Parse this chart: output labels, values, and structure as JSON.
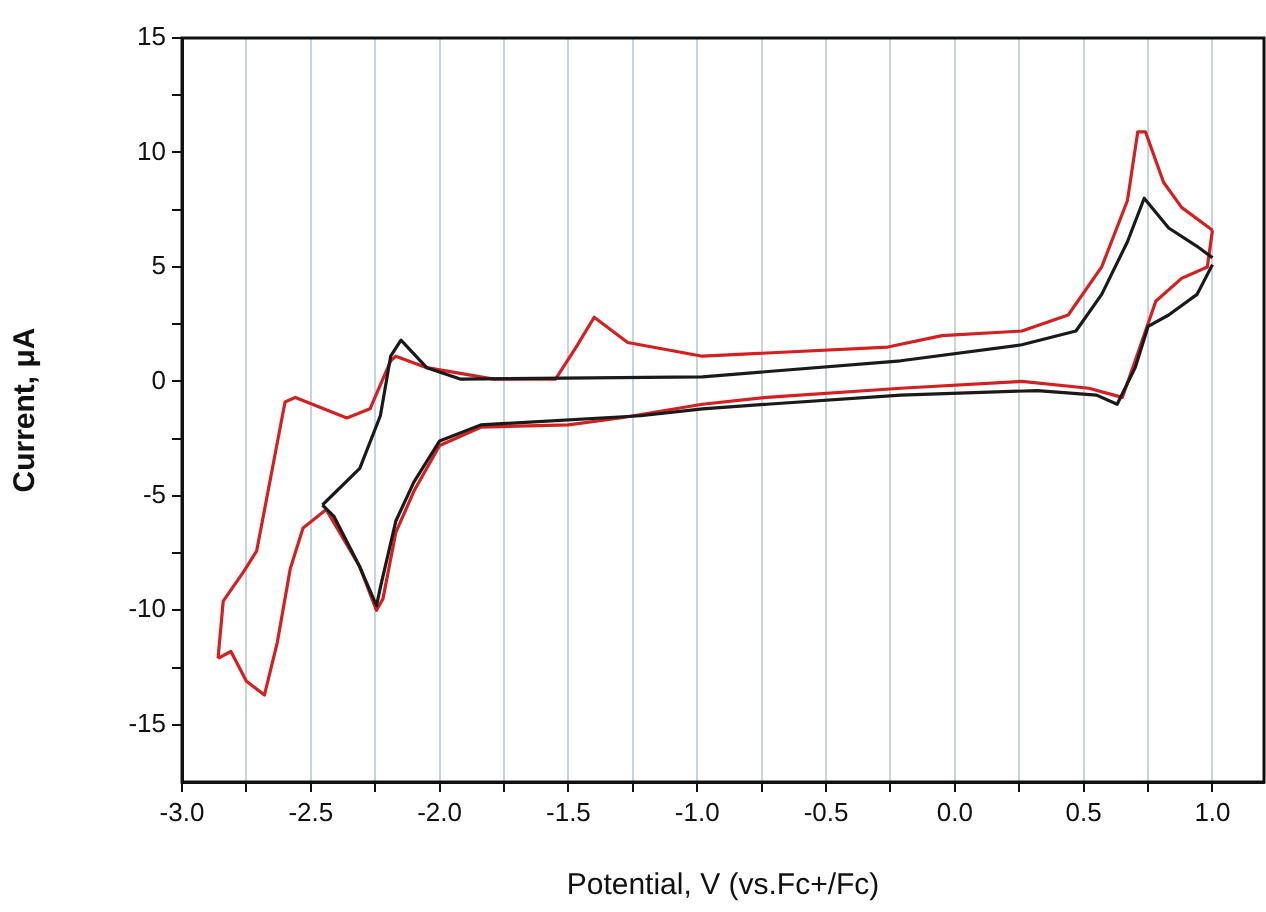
{
  "chart_data": {
    "type": "line",
    "xlabel": "Potential, V (vs.Fc+/Fc)",
    "ylabel": "Current, μA",
    "xlim": [
      -3.0,
      1.2
    ],
    "ylim": [
      -17.5,
      15
    ],
    "xticks": [
      {
        "value": -3,
        "label": "-3.0"
      },
      {
        "value": -2.75,
        "label": null
      },
      -2.5,
      {
        "value": -2.25,
        "label": null
      },
      {
        "value": -2,
        "label": "-2.0"
      },
      {
        "value": -1.75,
        "label": null
      },
      -1.5,
      {
        "value": -1.25,
        "label": null
      },
      {
        "value": -1,
        "label": "-1.0"
      },
      {
        "value": -0.75,
        "label": null
      },
      -0.5,
      {
        "value": -0.25,
        "label": null
      },
      {
        "value": 0,
        "label": "0.0"
      },
      {
        "value": 0.25,
        "label": null
      },
      0.5,
      {
        "value": 0.75,
        "label": null
      },
      {
        "value": 1,
        "label": "1.0"
      }
    ],
    "yticks": [
      15,
      {
        "value": 12.5,
        "label": null
      },
      10,
      {
        "value": 7.5,
        "label": null
      },
      5,
      {
        "value": 2.5,
        "label": null
      },
      0,
      {
        "value": -2.5,
        "label": null
      },
      -5,
      {
        "value": -7.5,
        "label": null
      },
      -10,
      {
        "value": -12.5,
        "label": null
      },
      -15
    ],
    "grid": "x",
    "legend": false,
    "marker": "none",
    "line_style": "solid",
    "series": [
      {
        "color": "#1a1a1a",
        "x": [
          -2.455,
          -2.31,
          -2.23,
          -2.19,
          -2.15,
          -2.05,
          -1.92,
          -0.98,
          -0.21,
          0.26,
          0.47,
          0.57,
          0.67,
          0.735,
          0.83,
          0.94,
          1.0
        ],
        "values": [
          -5.4,
          -3.8,
          -1.5,
          1.1,
          1.8,
          0.6,
          0.1,
          0.2,
          0.9,
          1.6,
          2.2,
          3.8,
          6.1,
          8.0,
          6.7,
          5.9,
          5.4
        ]
      },
      {
        "color": "#1a1a1a",
        "x": [
          -2.455,
          -2.41,
          -2.31,
          -2.245,
          -2.23,
          -2.17,
          -2.1,
          -2.0,
          -1.84,
          -1.22,
          -0.98,
          -0.73,
          -0.21,
          0.32,
          0.55,
          0.63,
          0.7,
          0.75,
          0.83,
          0.94,
          1.0
        ],
        "values": [
          -5.4,
          -5.9,
          -8.1,
          -9.8,
          -9.0,
          -6.1,
          -4.4,
          -2.6,
          -1.9,
          -1.5,
          -1.2,
          -1.0,
          -0.6,
          -0.4,
          -0.6,
          -1.0,
          0.6,
          2.4,
          2.9,
          3.8,
          5.1
        ]
      },
      {
        "color": "#d42020",
        "x": [
          -2.86,
          -2.84,
          -2.76,
          -2.71,
          -2.6,
          -2.56,
          -2.36,
          -2.27,
          -2.19,
          -2.17,
          -2.05,
          -1.79,
          -1.55,
          -1.47,
          -1.4,
          -1.27,
          -0.98,
          -0.26,
          -0.05,
          0.26,
          0.44,
          0.57,
          0.67,
          0.71,
          0.74,
          0.81,
          0.88,
          1.0
        ],
        "values": [
          -12.1,
          -9.6,
          -8.3,
          -7.4,
          -0.9,
          -0.7,
          -1.6,
          -1.2,
          0.9,
          1.1,
          0.6,
          0.1,
          0.1,
          1.5,
          2.8,
          1.7,
          1.1,
          1.5,
          2.0,
          2.2,
          2.9,
          5.0,
          7.9,
          10.9,
          10.9,
          8.7,
          7.6,
          6.6
        ]
      },
      {
        "color": "#d42020",
        "x": [
          -2.86,
          -2.81,
          -2.75,
          -2.68,
          -2.63,
          -2.58,
          -2.53,
          -2.44,
          -2.31,
          -2.245,
          -2.22,
          -2.17,
          -2.1,
          -2.0,
          -1.84,
          -1.5,
          -1.3,
          -0.98,
          -0.73,
          -0.21,
          0.26,
          0.52,
          0.65,
          0.7,
          0.78,
          0.88,
          0.98,
          1.0
        ],
        "values": [
          -12.1,
          -11.8,
          -13.1,
          -13.7,
          -11.4,
          -8.2,
          -6.4,
          -5.6,
          -8.1,
          -10.0,
          -9.5,
          -6.6,
          -4.8,
          -2.8,
          -2.0,
          -1.9,
          -1.6,
          -1.0,
          -0.7,
          -0.3,
          0.0,
          -0.3,
          -0.7,
          0.9,
          3.5,
          4.5,
          5.0,
          6.6
        ]
      }
    ]
  }
}
